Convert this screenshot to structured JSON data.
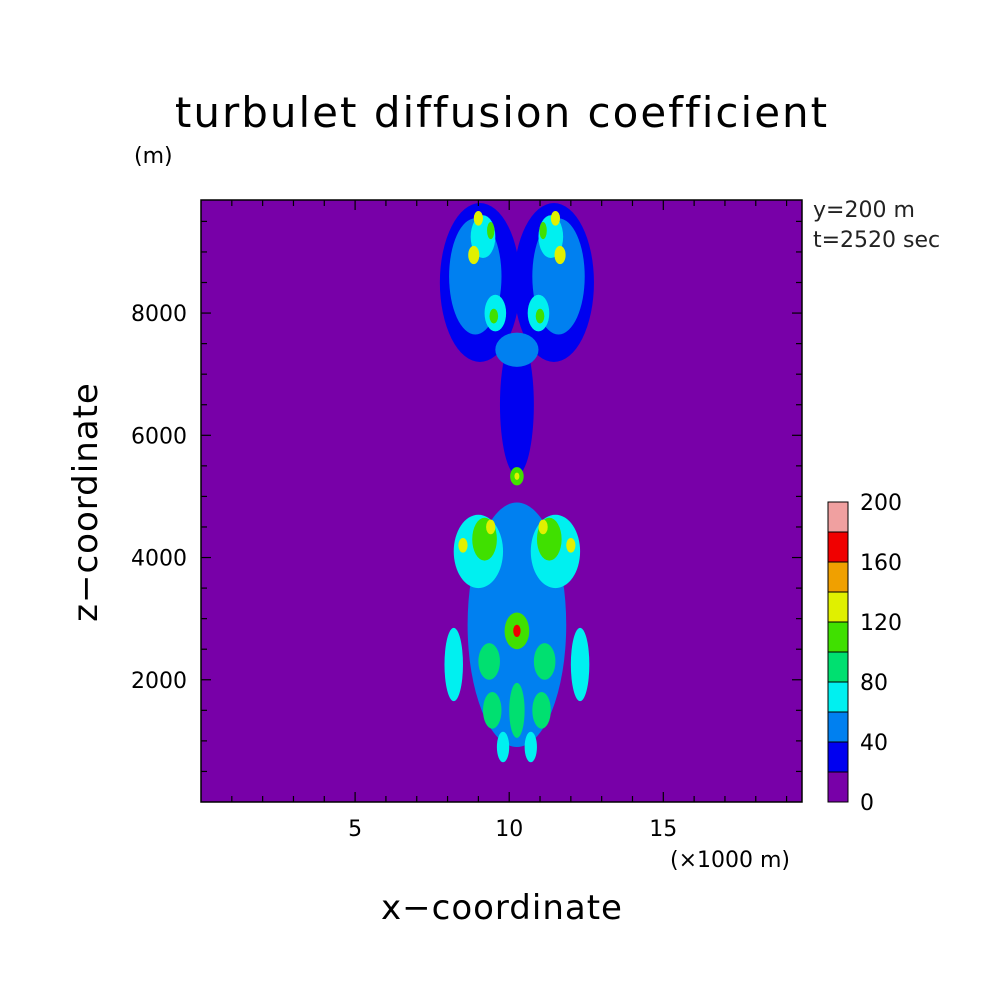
{
  "chart_data": {
    "type": "heatmap",
    "title": "turbulet diffusion coefficient",
    "xlabel": "x−coordinate",
    "ylabel": "z−coordinate",
    "x_unit": "(×1000 m)",
    "y_unit": "(m)",
    "annotations": [
      "y=200 m",
      "t=2520 sec"
    ],
    "xlim": [
      0,
      19.5
    ],
    "ylim": [
      0,
      9850
    ],
    "x_ticks": [
      5,
      10,
      15
    ],
    "y_ticks": [
      2000,
      4000,
      6000,
      8000
    ],
    "colorbar": {
      "levels": [
        0,
        20,
        40,
        60,
        80,
        100,
        120,
        140,
        160,
        180,
        200
      ],
      "labels": [
        0,
        40,
        80,
        120,
        160,
        200
      ],
      "colors": [
        "#7800a8",
        "#0000f0",
        "#0080f0",
        "#00f0f0",
        "#00e070",
        "#40e000",
        "#e0f000",
        "#f0a000",
        "#f00000",
        "#f0a0a0"
      ]
    },
    "background_value": 0,
    "features": [
      {
        "x": 9.05,
        "z": 8500,
        "rx": 1.3,
        "rz": 1300,
        "value": 30
      },
      {
        "x": 11.45,
        "z": 8500,
        "rx": 1.3,
        "rz": 1300,
        "value": 30
      },
      {
        "x": 10.25,
        "z": 6500,
        "rx": 0.55,
        "rz": 1150,
        "value": 25
      },
      {
        "x": 10.25,
        "z": 7400,
        "rx": 0.7,
        "rz": 280,
        "value": 45
      },
      {
        "x": 8.9,
        "z": 8600,
        "rx": 0.85,
        "rz": 950,
        "value": 55
      },
      {
        "x": 11.6,
        "z": 8600,
        "rx": 0.85,
        "rz": 950,
        "value": 55
      },
      {
        "x": 9.15,
        "z": 9250,
        "rx": 0.4,
        "rz": 350,
        "value": 75
      },
      {
        "x": 11.35,
        "z": 9250,
        "rx": 0.4,
        "rz": 350,
        "value": 75
      },
      {
        "x": 9.0,
        "z": 9550,
        "rx": 0.15,
        "rz": 120,
        "value": 125
      },
      {
        "x": 11.5,
        "z": 9550,
        "rx": 0.15,
        "rz": 120,
        "value": 125
      },
      {
        "x": 8.85,
        "z": 8950,
        "rx": 0.18,
        "rz": 150,
        "value": 130
      },
      {
        "x": 11.65,
        "z": 8950,
        "rx": 0.18,
        "rz": 150,
        "value": 130
      },
      {
        "x": 9.4,
        "z": 9350,
        "rx": 0.12,
        "rz": 140,
        "value": 110
      },
      {
        "x": 11.1,
        "z": 9350,
        "rx": 0.12,
        "rz": 140,
        "value": 110
      },
      {
        "x": 9.55,
        "z": 8000,
        "rx": 0.35,
        "rz": 300,
        "value": 75
      },
      {
        "x": 10.95,
        "z": 8000,
        "rx": 0.35,
        "rz": 300,
        "value": 75
      },
      {
        "x": 9.5,
        "z": 7950,
        "rx": 0.14,
        "rz": 120,
        "value": 110
      },
      {
        "x": 11.0,
        "z": 7950,
        "rx": 0.14,
        "rz": 120,
        "value": 110
      },
      {
        "x": 10.25,
        "z": 5330,
        "rx": 0.22,
        "rz": 150,
        "value": 100
      },
      {
        "x": 10.25,
        "z": 5330,
        "rx": 0.08,
        "rz": 60,
        "value": 130
      },
      {
        "x": 10.25,
        "z": 2900,
        "rx": 1.6,
        "rz": 2000,
        "value": 45
      },
      {
        "x": 9.0,
        "z": 4100,
        "rx": 0.8,
        "rz": 600,
        "value": 60
      },
      {
        "x": 11.5,
        "z": 4100,
        "rx": 0.8,
        "rz": 600,
        "value": 60
      },
      {
        "x": 9.2,
        "z": 4300,
        "rx": 0.4,
        "rz": 350,
        "value": 100
      },
      {
        "x": 11.3,
        "z": 4300,
        "rx": 0.4,
        "rz": 350,
        "value": 100
      },
      {
        "x": 9.4,
        "z": 4500,
        "rx": 0.15,
        "rz": 120,
        "value": 130
      },
      {
        "x": 11.1,
        "z": 4500,
        "rx": 0.15,
        "rz": 120,
        "value": 130
      },
      {
        "x": 8.5,
        "z": 4200,
        "rx": 0.15,
        "rz": 120,
        "value": 125
      },
      {
        "x": 12.0,
        "z": 4200,
        "rx": 0.15,
        "rz": 120,
        "value": 125
      },
      {
        "x": 8.2,
        "z": 2250,
        "rx": 0.3,
        "rz": 600,
        "value": 70
      },
      {
        "x": 12.3,
        "z": 2250,
        "rx": 0.3,
        "rz": 600,
        "value": 70
      },
      {
        "x": 10.25,
        "z": 2800,
        "rx": 0.4,
        "rz": 300,
        "value": 100
      },
      {
        "x": 10.25,
        "z": 2800,
        "rx": 0.12,
        "rz": 100,
        "value": 170
      },
      {
        "x": 9.35,
        "z": 2300,
        "rx": 0.35,
        "rz": 300,
        "value": 90
      },
      {
        "x": 11.15,
        "z": 2300,
        "rx": 0.35,
        "rz": 300,
        "value": 90
      },
      {
        "x": 9.45,
        "z": 1500,
        "rx": 0.3,
        "rz": 300,
        "value": 95
      },
      {
        "x": 11.05,
        "z": 1500,
        "rx": 0.3,
        "rz": 300,
        "value": 95
      },
      {
        "x": 10.25,
        "z": 1500,
        "rx": 0.25,
        "rz": 450,
        "value": 90
      },
      {
        "x": 9.8,
        "z": 900,
        "rx": 0.2,
        "rz": 250,
        "value": 70
      },
      {
        "x": 10.7,
        "z": 900,
        "rx": 0.2,
        "rz": 250,
        "value": 70
      }
    ]
  }
}
